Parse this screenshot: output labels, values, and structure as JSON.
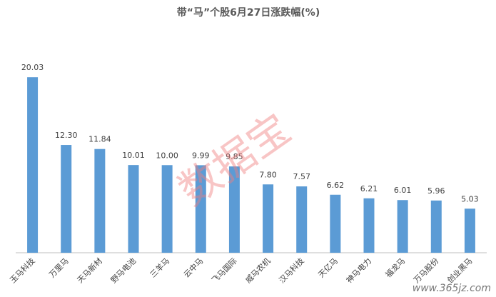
{
  "chart_data": {
    "type": "bar",
    "title": "带“马”个股6月27日涨跌幅(%)",
    "categories": [
      "玉马科技",
      "万里马",
      "天马新材",
      "野马电池",
      "三羊马",
      "云中马",
      "飞马国际",
      "威马农机",
      "汉马科技",
      "天亿马",
      "神马电力",
      "福龙马",
      "万马股份",
      "创业黑马"
    ],
    "values": [
      20.03,
      12.3,
      11.84,
      10.01,
      10.0,
      9.99,
      9.85,
      7.8,
      7.57,
      6.62,
      6.21,
      6.01,
      5.96,
      5.03
    ],
    "value_labels": [
      "20.03",
      "12.30",
      "11.84",
      "10.01",
      "10.00",
      "9.99",
      "9.85",
      "7.80",
      "7.57",
      "6.62",
      "6.21",
      "6.01",
      "5.96",
      "5.03"
    ],
    "color": "#5b9bd5",
    "ylim": [
      0,
      22
    ],
    "watermark": "数据宝",
    "site_watermark": "www.365jz.com"
  }
}
